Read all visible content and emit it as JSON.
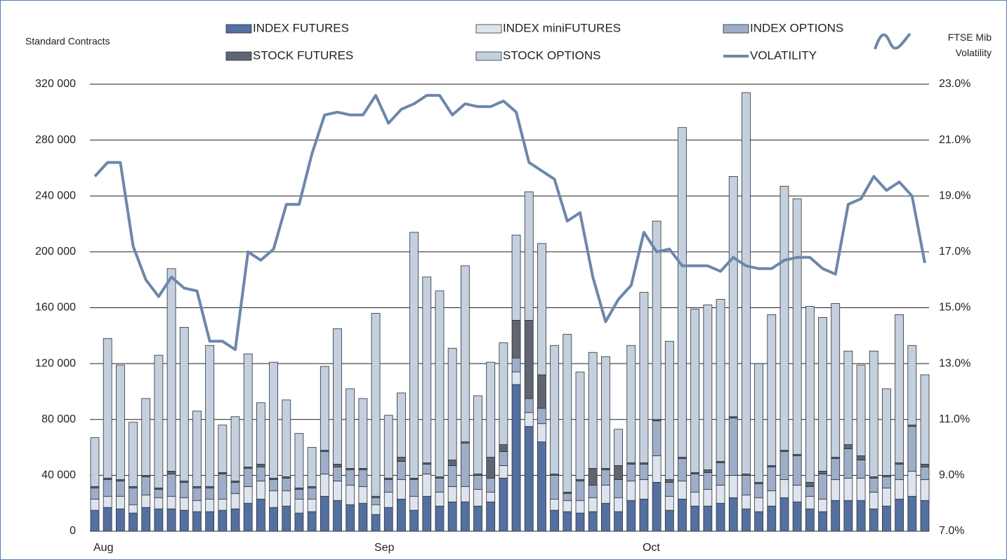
{
  "chart_data": {
    "type": "bar",
    "stacked": true,
    "ylabel": "Standard Contracts",
    "y2label": "FTSE Mib Volatility",
    "categories": [
      "Aug",
      null,
      null,
      null,
      null,
      null,
      null,
      null,
      null,
      null,
      null,
      null,
      null,
      null,
      null,
      null,
      null,
      null,
      null,
      null,
      null,
      null,
      "Sep",
      null,
      null,
      null,
      null,
      null,
      null,
      null,
      null,
      null,
      null,
      null,
      null,
      null,
      null,
      null,
      null,
      null,
      null,
      null,
      null,
      "Oct",
      null,
      null,
      null,
      null,
      null,
      null,
      null,
      null,
      null,
      null,
      null,
      null,
      null,
      null,
      null,
      null,
      null,
      null,
      null,
      null,
      null,
      null
    ],
    "ylim": [
      0,
      320000
    ],
    "yticks": [
      0,
      {
        "value": 40000,
        "label": "40 000"
      },
      {
        "value": 80000,
        "label": "80 000"
      },
      {
        "value": 120000,
        "label": "120 000"
      },
      {
        "value": 160000,
        "label": "160 000"
      },
      {
        "value": 200000,
        "label": "200 000"
      },
      {
        "value": 240000,
        "label": "240 000"
      },
      {
        "value": 280000,
        "label": "280 000"
      },
      {
        "value": 320000,
        "label": "320 000"
      }
    ],
    "y2lim": [
      7,
      23
    ],
    "y2ticks": [
      {
        "value": 7,
        "label": "7.0%"
      },
      {
        "value": 9,
        "label": "9.0%"
      },
      {
        "value": 11,
        "label": "11.0%"
      },
      {
        "value": 13,
        "label": "13.0%"
      },
      {
        "value": 15,
        "label": "15.0%"
      },
      {
        "value": 17,
        "label": "17.0%"
      },
      {
        "value": 19,
        "label": "19.0%"
      },
      {
        "value": 21,
        "label": "21.0%"
      },
      {
        "value": 23,
        "label": "23.0%"
      }
    ],
    "grid": true,
    "series": [
      {
        "name": "INDEX FUTURES",
        "color": "#5470a0",
        "values": [
          15000,
          17000,
          16000,
          13000,
          17000,
          16000,
          16000,
          15000,
          14000,
          14000,
          15000,
          16000,
          20000,
          23000,
          17000,
          18000,
          13000,
          14000,
          25000,
          22000,
          19000,
          20000,
          12000,
          17000,
          23000,
          15000,
          25000,
          18000,
          21000,
          21000,
          18000,
          21000,
          38000,
          105000,
          75000,
          64000,
          15000,
          14000,
          13000,
          14000,
          20000,
          14000,
          22000,
          23000,
          35000,
          15000,
          23000,
          18000,
          18000,
          20000,
          24000,
          16000,
          14000,
          18000,
          24000,
          21000,
          16000,
          14000,
          22000,
          22000,
          22000,
          16000,
          18000,
          23000,
          25000,
          22000
        ]
      },
      {
        "name": "INDEX miniFUTURES",
        "color": "#dde4ee",
        "values": [
          8000,
          8000,
          9000,
          6000,
          9000,
          8000,
          9000,
          9000,
          8000,
          9000,
          8000,
          11000,
          12000,
          13000,
          12000,
          11000,
          10000,
          9000,
          16000,
          14000,
          14000,
          12000,
          7000,
          11000,
          14000,
          10000,
          16000,
          10000,
          11000,
          11000,
          12000,
          7000,
          9000,
          9000,
          10000,
          13000,
          8000,
          8000,
          9000,
          10000,
          13000,
          10000,
          14000,
          14000,
          19000,
          10000,
          13000,
          10000,
          12000,
          13000,
          16000,
          10000,
          10000,
          11000,
          13000,
          12000,
          9000,
          9000,
          15000,
          16000,
          16000,
          12000,
          13000,
          14000,
          18000,
          15000
        ]
      },
      {
        "name": "INDEX OPTIONS",
        "color": "#9eaec8",
        "values": [
          8000,
          12000,
          11000,
          12000,
          13000,
          6000,
          16000,
          11000,
          9000,
          8000,
          18000,
          8000,
          13000,
          10000,
          8000,
          9000,
          7000,
          8000,
          16000,
          10000,
          11000,
          12000,
          5000,
          9000,
          13000,
          12000,
          7000,
          10000,
          15000,
          31000,
          10000,
          10000,
          10000,
          10000,
          10000,
          11000,
          17000,
          5000,
          14000,
          9000,
          11000,
          13000,
          12000,
          11000,
          25000,
          10000,
          16000,
          13000,
          12000,
          16000,
          41000,
          14000,
          10000,
          17000,
          20000,
          21000,
          7000,
          18000,
          15000,
          21000,
          13000,
          10000,
          8000,
          11000,
          32000,
          9000
        ]
      },
      {
        "name": "STOCK FUTURES",
        "color": "#5f6672",
        "values": [
          1000,
          1000,
          1000,
          1000,
          1000,
          1000,
          2000,
          1000,
          1000,
          1000,
          1000,
          1000,
          1000,
          2000,
          1000,
          1000,
          1000,
          1000,
          1000,
          2000,
          1000,
          1000,
          1000,
          1000,
          3000,
          1000,
          1000,
          1000,
          4000,
          1000,
          1000,
          15000,
          5000,
          27000,
          56000,
          24000,
          1000,
          1000,
          1000,
          12000,
          1000,
          10000,
          1000,
          1000,
          1000,
          2000,
          1000,
          1000,
          2000,
          1000,
          1000,
          1000,
          1000,
          1000,
          1000,
          1000,
          3000,
          2000,
          1000,
          3000,
          3000,
          1000,
          1000,
          1000,
          1000,
          2000
        ]
      },
      {
        "name": "STOCK OPTIONS",
        "color": "#c5d0de",
        "values": [
          35000,
          100000,
          82000,
          46000,
          55000,
          95000,
          145000,
          110000,
          54000,
          101000,
          34000,
          46000,
          81000,
          44000,
          83000,
          55000,
          39000,
          28000,
          60000,
          97000,
          57000,
          50000,
          131000,
          45000,
          46000,
          176000,
          133000,
          133000,
          80000,
          126000,
          56000,
          68000,
          73000,
          61000,
          92000,
          94000,
          92000,
          113000,
          77000,
          83000,
          80000,
          26000,
          84000,
          122000,
          142000,
          99000,
          236000,
          117000,
          118000,
          116000,
          172000,
          273000,
          85000,
          108000,
          189000,
          183000,
          126000,
          110000,
          110000,
          67000,
          65000,
          90000,
          62000,
          106000,
          57000,
          64000
        ]
      },
      {
        "name": "VOLATILITY",
        "color": "#6d87aa",
        "axis": "y2",
        "values": [
          19.7,
          20.2,
          20.2,
          17.2,
          16.0,
          15.4,
          16.1,
          15.7,
          15.6,
          13.8,
          13.8,
          13.5,
          17.0,
          16.7,
          17.1,
          18.7,
          18.7,
          20.5,
          21.9,
          22.0,
          21.9,
          21.9,
          22.6,
          21.6,
          22.1,
          22.3,
          22.6,
          22.6,
          21.9,
          22.3,
          22.2,
          22.2,
          22.4,
          22.0,
          20.2,
          19.9,
          19.6,
          18.1,
          18.4,
          16.1,
          14.5,
          15.3,
          15.8,
          17.7,
          17.0,
          17.1,
          16.5,
          16.5,
          16.5,
          16.3,
          16.8,
          16.5,
          16.4,
          16.4,
          16.7,
          16.8,
          16.8,
          16.4,
          16.2,
          18.7,
          18.9,
          19.7,
          19.2,
          19.5,
          19.0,
          16.6
        ]
      }
    ]
  }
}
